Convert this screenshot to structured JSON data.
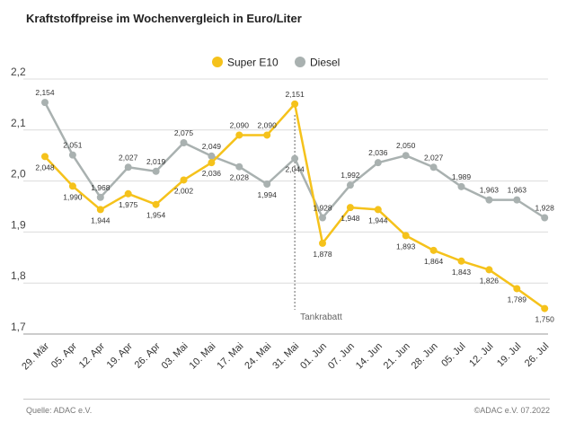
{
  "chart_data": {
    "type": "line",
    "title": "Kraftstoffpreise im Wochenvergleich in Euro/Liter",
    "categories": [
      "29. Mär",
      "05. Apr",
      "12. Apr",
      "19. Apr",
      "26. Apr",
      "03. Mai",
      "10. Mai",
      "17. Mai",
      "24. Mai",
      "31. Mai",
      "01. Jun",
      "07. Jun",
      "14. Jun",
      "21. Jun",
      "28. Jun",
      "05. Jul",
      "12. Jul",
      "19. Jul",
      "26. Jul"
    ],
    "series": [
      {
        "name": "Super E10",
        "color": "#f5c21b",
        "values": [
          2.048,
          1.99,
          1.944,
          1.975,
          1.954,
          2.002,
          2.036,
          2.09,
          2.09,
          2.151,
          1.878,
          1.948,
          1.944,
          1.893,
          1.864,
          1.843,
          1.826,
          1.789,
          1.75
        ],
        "labels": [
          "2,048",
          "1,990",
          "1,944",
          "1,975",
          "1,954",
          "2,002",
          "2,036",
          "2,090",
          "2,090",
          "2,151",
          "1,878",
          "1,948",
          "1,944",
          "1,893",
          "1,864",
          "1,843",
          "1,826",
          "1,789",
          "1,750"
        ]
      },
      {
        "name": "Diesel",
        "color": "#a9b1b0",
        "values": [
          2.154,
          2.051,
          1.968,
          2.027,
          2.019,
          2.075,
          2.049,
          2.028,
          1.994,
          2.044,
          1.928,
          1.992,
          2.036,
          2.05,
          2.027,
          1.989,
          1.963,
          1.963,
          1.928
        ],
        "labels": [
          "2,154",
          "2,051",
          "1,968",
          "2,027",
          "2,019",
          "2,075",
          "2,049",
          "2,028",
          "1,994",
          "2,044",
          "1,928",
          "1,992",
          "2,036",
          "2,050",
          "2,027",
          "1,989",
          "1,963",
          "1,963",
          "1,928"
        ]
      }
    ],
    "yticks": [
      1.7,
      1.8,
      1.9,
      2.0,
      2.1,
      2.2
    ],
    "ytick_labels": [
      "1,7",
      "1,8",
      "1,9",
      "2,0",
      "2,1",
      "2,2"
    ],
    "ylim": [
      1.7,
      2.2
    ],
    "annotation": {
      "label": "Tankrabatt",
      "after_index": 9
    },
    "legend_position": "top-center",
    "grid": "horizontal"
  },
  "footer": {
    "source": "Quelle: ADAC e.V.",
    "copyright": "©ADAC e.V.  07.2022"
  }
}
